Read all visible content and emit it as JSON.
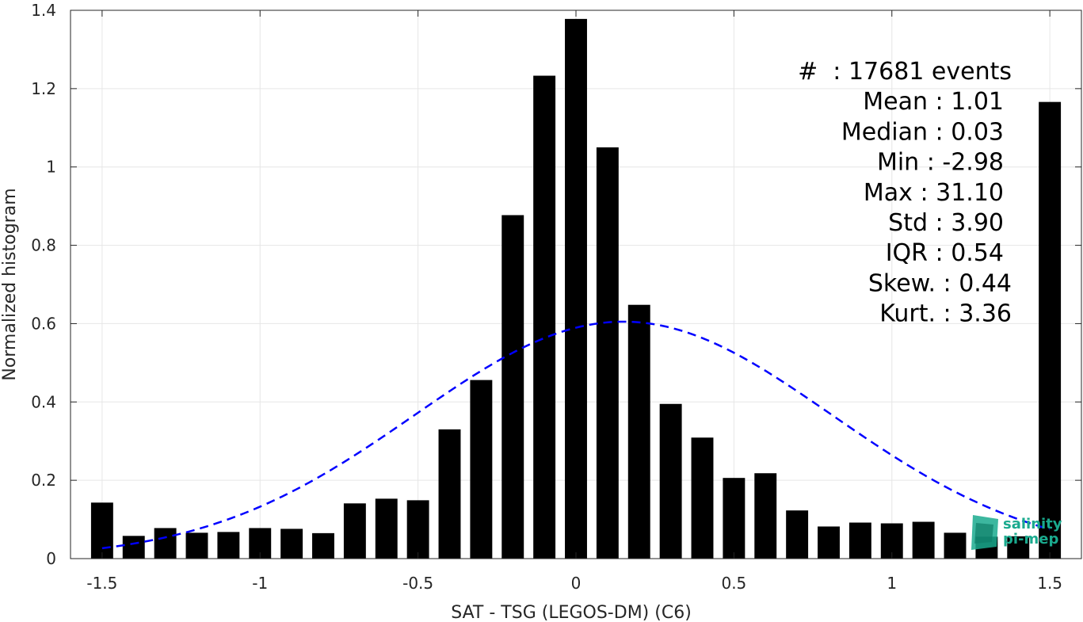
{
  "chart_data": {
    "type": "bar",
    "xlabel": "SAT - TSG (LEGOS-DM) (C6)",
    "ylabel": "Normalized histogram",
    "xlim": [
      -1.6,
      1.6
    ],
    "ylim": [
      0,
      1.4
    ],
    "xticks": [
      -1.5,
      -1,
      -0.5,
      0,
      0.5,
      1,
      1.5
    ],
    "xtick_labels": [
      "-1.5",
      "-1",
      "-0.5",
      "0",
      "0.5",
      "1",
      "1.5"
    ],
    "yticks": [
      0,
      0.2,
      0.4,
      0.6,
      0.8,
      1,
      1.2,
      1.4
    ],
    "ytick_labels": [
      "0",
      "0.2",
      "0.4",
      "0.6",
      "0.8",
      "1",
      "1.2",
      "1.4"
    ],
    "grid": true,
    "bar_color": "#000000",
    "x": [
      -1.5,
      -1.4,
      -1.3,
      -1.2,
      -1.1,
      -1.0,
      -0.9,
      -0.8,
      -0.7,
      -0.6,
      -0.5,
      -0.4,
      -0.3,
      -0.2,
      -0.1,
      0.0,
      0.1,
      0.2,
      0.3,
      0.4,
      0.5,
      0.6,
      0.7,
      0.8,
      0.9,
      1.0,
      1.1,
      1.2,
      1.3,
      1.4,
      1.5
    ],
    "values": [
      0.143,
      0.058,
      0.078,
      0.066,
      0.068,
      0.078,
      0.076,
      0.065,
      0.141,
      0.153,
      0.149,
      0.33,
      0.456,
      0.877,
      1.233,
      1.378,
      1.05,
      0.648,
      0.395,
      0.309,
      0.206,
      0.218,
      0.123,
      0.082,
      0.092,
      0.09,
      0.094,
      0.066,
      0.056,
      0.057,
      1.166
    ],
    "fit_curve": {
      "style": "dashed",
      "color": "#0000ff",
      "mean": 0.15,
      "sigma": 0.66,
      "peak": 0.605
    },
    "stats": [
      "#  : 17681 events",
      "Mean : 1.01",
      "Median : 0.03",
      "Min : -2.98",
      "Max : 31.10",
      "Std : 3.90",
      "IQR : 0.54",
      "Skew. : 0.44",
      "Kurt. : 3.36"
    ]
  },
  "logo": {
    "line1": "salinity",
    "line2": "pi-mep",
    "color": "#1aaa8e"
  }
}
